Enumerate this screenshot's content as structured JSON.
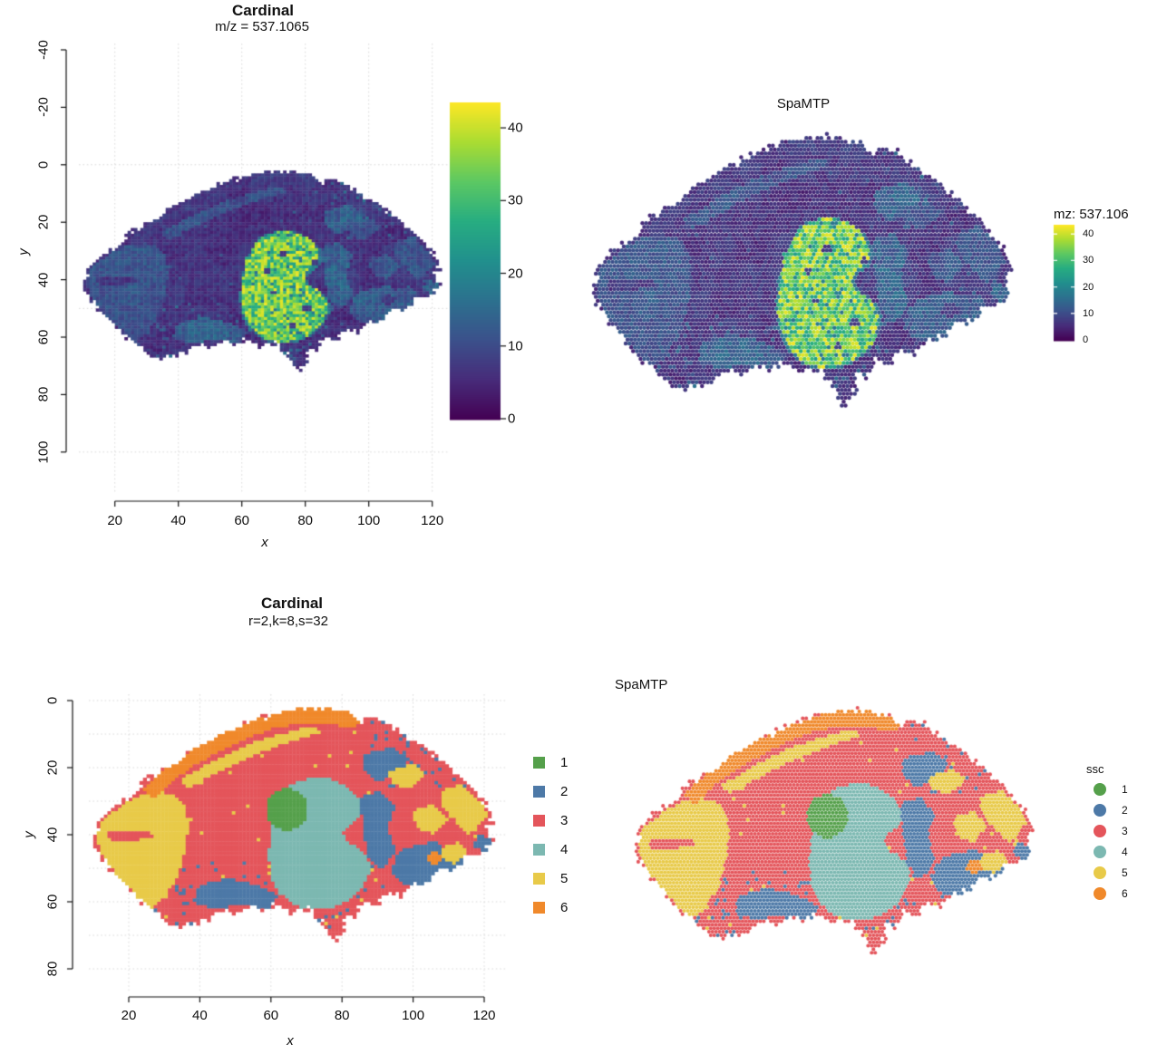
{
  "figure": {
    "background": "#ffffff"
  },
  "palette": {
    "grid_color": "#d9d9d9",
    "axis_color": "#111111",
    "viridis_stops": [
      [
        0.0,
        68,
        1,
        84
      ],
      [
        0.125,
        71,
        44,
        122
      ],
      [
        0.25,
        59,
        81,
        139
      ],
      [
        0.375,
        44,
        113,
        142
      ],
      [
        0.5,
        33,
        144,
        141
      ],
      [
        0.625,
        39,
        173,
        129
      ],
      [
        0.75,
        92,
        200,
        99
      ],
      [
        0.875,
        170,
        220,
        50
      ],
      [
        1.0,
        253,
        231,
        37
      ]
    ]
  },
  "clusters": [
    {
      "label": "1",
      "color": "#55a04b"
    },
    {
      "label": "2",
      "color": "#4d79a7"
    },
    {
      "label": "3",
      "color": "#e4555b"
    },
    {
      "label": "4",
      "color": "#7cb8b1"
    },
    {
      "label": "5",
      "color": "#e8ca49"
    },
    {
      "label": "6",
      "color": "#f0892b"
    }
  ],
  "panels": {
    "cardinal_ion": {
      "title": "Cardinal",
      "subtitle": "m/z = 537.1065",
      "xlabel": "x",
      "ylabel": "y",
      "x_ticks": [
        "20",
        "40",
        "60",
        "80",
        "100",
        "120"
      ],
      "y_ticks": [
        "-40",
        "-20",
        "0",
        "20",
        "40",
        "60",
        "80",
        "100"
      ],
      "colorbar_ticks": [
        "0",
        "10",
        "20",
        "30",
        "40"
      ]
    },
    "spamtp_ion": {
      "title": "SpaMTP",
      "legend_title": "mz: 537.106",
      "legend_ticks": [
        "40",
        "30",
        "20",
        "10",
        "0"
      ]
    },
    "cardinal_ssc": {
      "title": "Cardinal",
      "subtitle": "r=2,k=8,s=32",
      "xlabel": "x",
      "ylabel": "y",
      "x_ticks": [
        "20",
        "40",
        "60",
        "80",
        "100",
        "120"
      ],
      "y_ticks": [
        "0",
        "20",
        "40",
        "60",
        "80"
      ],
      "legend_labels": [
        "1",
        "2",
        "3",
        "4",
        "5",
        "6"
      ]
    },
    "spamtp_ssc": {
      "title": "SpaMTP",
      "legend_title": "ssc",
      "legend_labels": [
        "1",
        "2",
        "3",
        "4",
        "5",
        "6"
      ]
    }
  },
  "chart_data": [
    {
      "id": "cardinal_ion",
      "type": "heatmap",
      "title": "Cardinal",
      "subtitle": "m/z = 537.1065",
      "xlabel": "x",
      "ylabel": "y",
      "x_ticks": [
        20,
        40,
        60,
        80,
        100,
        120
      ],
      "y_ticks": [
        -40,
        -20,
        0,
        20,
        40,
        60,
        80,
        100
      ],
      "grid": true,
      "colormap": "viridis",
      "value_range": [
        0,
        43.5
      ],
      "colorbar_ticks": [
        0,
        10,
        20,
        30,
        40
      ],
      "content": "Mouse brain MSI ion image: dark background tissue (intensity ~0-12) spanning x 10-122, y 2-72, with one bright region (~25-43) centered near x 72, y 43"
    },
    {
      "id": "spamtp_ion",
      "type": "scatter",
      "title": "SpaMTP",
      "legend_title": "mz: 537.106",
      "legend_ticks": [
        40,
        30,
        20,
        10,
        0
      ],
      "colormap": "viridis",
      "value_range": [
        0,
        43.5
      ],
      "grid": false,
      "axes": false,
      "content": "Same ion intensity data rendered as round spatial spots without axes"
    },
    {
      "id": "cardinal_ssc",
      "type": "segmentation",
      "title": "Cardinal",
      "subtitle": "r=2,k=8,s=32",
      "xlabel": "x",
      "ylabel": "y",
      "x_ticks": [
        20,
        40,
        60,
        80,
        100,
        120
      ],
      "y_ticks": [
        0,
        20,
        40,
        60,
        80
      ],
      "grid": true,
      "classes": [
        1,
        2,
        3,
        4,
        5,
        6
      ],
      "class_colors": [
        "#55a04b",
        "#4d79a7",
        "#e4555b",
        "#7cb8b1",
        "#e8ca49",
        "#f0892b"
      ],
      "content": "Spatial clustering: cluster 3 red dominant, cluster 5 yellow left lobe and dorsal streaks, cluster 4 teal central blob, cluster 6 orange dorsal band, cluster 2 blue scattered patches, cluster 1 green small central patch"
    },
    {
      "id": "spamtp_ssc",
      "type": "segmentation",
      "title": "SpaMTP",
      "legend_title": "ssc",
      "classes": [
        1,
        2,
        3,
        4,
        5,
        6
      ],
      "class_colors": [
        "#55a04b",
        "#4d79a7",
        "#e4555b",
        "#7cb8b1",
        "#e8ca49",
        "#f0892b"
      ],
      "axes": false,
      "content": "Same clustering rendered as round spatial spots without axes"
    }
  ],
  "spatial_model": {
    "value_max": 43.5,
    "outline": [
      [
        10,
        41
      ],
      [
        12,
        35
      ],
      [
        16,
        31
      ],
      [
        21,
        28
      ],
      [
        26,
        23
      ],
      [
        32,
        19
      ],
      [
        39,
        14
      ],
      [
        46,
        10
      ],
      [
        53,
        7
      ],
      [
        60,
        4
      ],
      [
        67,
        2.5
      ],
      [
        75,
        2
      ],
      [
        82,
        3.5
      ],
      [
        85,
        6.5
      ],
      [
        88,
        4.5
      ],
      [
        92,
        6.5
      ],
      [
        97,
        10
      ],
      [
        103,
        14
      ],
      [
        109,
        19
      ],
      [
        114,
        24
      ],
      [
        118,
        28
      ],
      [
        121,
        32
      ],
      [
        122,
        36
      ],
      [
        120.5,
        39
      ],
      [
        122.5,
        42
      ],
      [
        119,
        45.5
      ],
      [
        115,
        46
      ],
      [
        112,
        50
      ],
      [
        107.5,
        50.5
      ],
      [
        104.5,
        54
      ],
      [
        99.5,
        54.5
      ],
      [
        96.5,
        58.5
      ],
      [
        92.5,
        57
      ],
      [
        89.5,
        61.5
      ],
      [
        86,
        59.5
      ],
      [
        83.5,
        64.5
      ],
      [
        81,
        63
      ],
      [
        80,
        69.5
      ],
      [
        77,
        72.5
      ],
      [
        74.5,
        66
      ],
      [
        70,
        61.5
      ],
      [
        66,
        63.5
      ],
      [
        62,
        60.5
      ],
      [
        58,
        63
      ],
      [
        54,
        61
      ],
      [
        50,
        64
      ],
      [
        46,
        62
      ],
      [
        42,
        65.5
      ],
      [
        38,
        66
      ],
      [
        34,
        68
      ],
      [
        29.5,
        65
      ],
      [
        25.5,
        61
      ],
      [
        20.5,
        56.5
      ],
      [
        16.5,
        52
      ],
      [
        12.5,
        47.5
      ]
    ],
    "ion_blob": [
      [
        64,
        28
      ],
      [
        67,
        25
      ],
      [
        71,
        23.5
      ],
      [
        76,
        23.5
      ],
      [
        80,
        25
      ],
      [
        83,
        27.5
      ],
      [
        84.5,
        31
      ],
      [
        84,
        34.5
      ],
      [
        81,
        36.5
      ],
      [
        79.5,
        39
      ],
      [
        80.5,
        41.5
      ],
      [
        84,
        43.5
      ],
      [
        86.5,
        47
      ],
      [
        87,
        51
      ],
      [
        85.5,
        55
      ],
      [
        82.5,
        58.5
      ],
      [
        78,
        61
      ],
      [
        72.5,
        62
      ],
      [
        67,
        60.5
      ],
      [
        63,
        57
      ],
      [
        60.5,
        52
      ],
      [
        59.8,
        46
      ],
      [
        60.5,
        39
      ],
      [
        61.5,
        32.5
      ]
    ],
    "holes": [
      [
        73,
        31,
        1.3
      ],
      [
        80.5,
        50,
        1.4
      ],
      [
        70,
        44.5,
        1.0
      ],
      [
        83,
        34,
        0.9
      ],
      [
        76,
        56,
        0.9
      ],
      [
        68,
        37,
        0.8
      ]
    ],
    "teal": [
      [
        63,
        27
      ],
      [
        67,
        24.5
      ],
      [
        72,
        23
      ],
      [
        77,
        23.5
      ],
      [
        81,
        25.5
      ],
      [
        84,
        28
      ],
      [
        85.5,
        31.5
      ],
      [
        85,
        35
      ],
      [
        82,
        37
      ],
      [
        80.5,
        39.5
      ],
      [
        81.5,
        42
      ],
      [
        85,
        44
      ],
      [
        87.5,
        47.5
      ],
      [
        88,
        51.5
      ],
      [
        86,
        55.5
      ],
      [
        83,
        59
      ],
      [
        78,
        61.5
      ],
      [
        72.5,
        62.5
      ],
      [
        66.5,
        61
      ],
      [
        62.5,
        57.5
      ],
      [
        60,
        52.5
      ],
      [
        59.3,
        46
      ],
      [
        60,
        39
      ],
      [
        61,
        32
      ]
    ],
    "green_blobs": [
      [
        64.5,
        32.4,
        6,
        6.2
      ],
      [
        13.8,
        55,
        1.4,
        1.6
      ],
      [
        21,
        62.5,
        1.6,
        1.4
      ],
      [
        52.5,
        64.5,
        1.2,
        1.0
      ],
      [
        88,
        63,
        1.0,
        0.9
      ]
    ],
    "orange_band": [
      [
        24,
        26
      ],
      [
        32,
        19
      ],
      [
        39,
        14
      ],
      [
        46,
        10
      ],
      [
        53,
        7
      ],
      [
        60,
        4
      ],
      [
        67,
        2.5
      ],
      [
        75,
        2
      ],
      [
        82,
        3.5
      ],
      [
        86,
        6
      ],
      [
        83,
        8.5
      ],
      [
        75,
        6.5
      ],
      [
        67,
        7
      ],
      [
        60,
        8.5
      ],
      [
        53,
        11.5
      ],
      [
        46,
        15
      ],
      [
        39,
        19
      ],
      [
        33,
        23.5
      ],
      [
        27,
        29
      ]
    ],
    "orange_blob": [
      106,
      47,
      2.3,
      1.9
    ],
    "red_intrusion": [
      [
        14,
        39
      ],
      [
        26,
        38.5
      ],
      [
        27,
        41
      ],
      [
        15,
        42.5
      ]
    ],
    "yellow_regions": [
      [
        [
          12,
          36
        ],
        [
          20,
          30
        ],
        [
          27,
          27
        ],
        [
          33,
          28
        ],
        [
          36,
          32
        ],
        [
          37,
          37
        ],
        [
          36,
          44
        ],
        [
          34,
          52
        ],
        [
          30,
          59
        ],
        [
          26,
          62
        ],
        [
          21,
          57
        ],
        [
          16,
          51
        ],
        [
          12.5,
          46
        ],
        [
          11,
          41
        ]
      ],
      [
        [
          34,
          24
        ],
        [
          44,
          18
        ],
        [
          54,
          13
        ],
        [
          63,
          10
        ],
        [
          72,
          7.5
        ],
        [
          74,
          9.5
        ],
        [
          65,
          12.5
        ],
        [
          56,
          16
        ],
        [
          46,
          21
        ],
        [
          37,
          26
        ]
      ],
      [
        [
          93,
          21
        ],
        [
          100,
          19
        ],
        [
          104,
          22
        ],
        [
          99,
          26
        ],
        [
          94,
          25
        ]
      ],
      [
        [
          108,
          27
        ],
        [
          114,
          25
        ],
        [
          119,
          30
        ],
        [
          121,
          34
        ],
        [
          116,
          40
        ],
        [
          112,
          36
        ],
        [
          108,
          31
        ]
      ],
      [
        [
          100,
          33
        ],
        [
          106,
          31
        ],
        [
          110,
          35
        ],
        [
          106,
          40
        ],
        [
          101,
          38
        ]
      ],
      [
        [
          108,
          44
        ],
        [
          113,
          42
        ],
        [
          116,
          45
        ],
        [
          112,
          49
        ],
        [
          108,
          47
        ]
      ]
    ],
    "blue_regions": [
      [
        [
          86,
          16
        ],
        [
          94,
          14
        ],
        [
          99,
          17
        ],
        [
          97,
          22
        ],
        [
          90,
          24
        ],
        [
          86,
          21
        ]
      ],
      [
        [
          85,
          29
        ],
        [
          91,
          27
        ],
        [
          95,
          32
        ],
        [
          93,
          38
        ],
        [
          95,
          45
        ],
        [
          91,
          51
        ],
        [
          87,
          46
        ],
        [
          86,
          38
        ]
      ],
      [
        [
          40,
          55
        ],
        [
          48,
          53
        ],
        [
          56,
          55
        ],
        [
          62,
          58
        ],
        [
          60,
          62
        ],
        [
          52,
          61
        ],
        [
          44,
          62
        ],
        [
          38,
          60
        ]
      ],
      [
        [
          98,
          44
        ],
        [
          106,
          42
        ],
        [
          112,
          46
        ],
        [
          118,
          47
        ],
        [
          116,
          52
        ],
        [
          110,
          52
        ],
        [
          104,
          56
        ],
        [
          98,
          55
        ],
        [
          94,
          52
        ],
        [
          95,
          47
        ]
      ],
      [
        [
          118,
          40
        ],
        [
          122,
          41
        ],
        [
          121,
          45
        ],
        [
          117,
          44
        ]
      ]
    ],
    "ion_base": {
      "1": [
        5,
        3
      ],
      "2": [
        9,
        6
      ],
      "3": [
        3,
        4.5
      ],
      "4": [
        12,
        7
      ],
      "5": [
        7.5,
        5
      ],
      "6": [
        4.5,
        4
      ]
    }
  }
}
